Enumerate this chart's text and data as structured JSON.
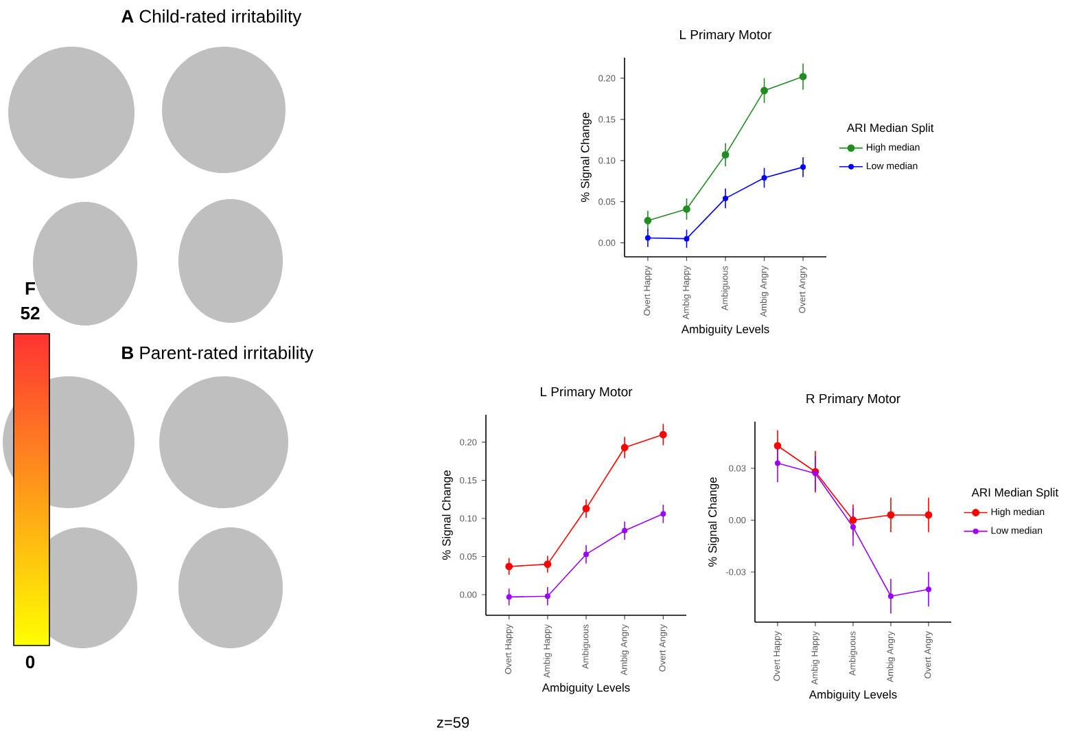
{
  "chart_data": [
    {
      "type": "line",
      "title": "L Primary Motor",
      "xlabel": "Ambiguity Levels",
      "ylabel": "% Signal Change",
      "legend_title": "ARI Median Split",
      "legend": "right",
      "marker": "circle",
      "categories": [
        "Overt Happy",
        "Ambig Happy",
        "Ambiguous",
        "Ambig Angry",
        "Overt Angry"
      ],
      "ylim": [
        -0.017,
        0.225
      ],
      "yticks": [
        {
          "value": 0,
          "label": "0.00"
        },
        {
          "value": 0.05,
          "label": "0.05"
        },
        {
          "value": 0.1,
          "label": "0.10"
        },
        {
          "value": 0.15,
          "label": "0.15"
        },
        {
          "value": 0.2,
          "label": "0.20"
        }
      ],
      "annotations": [
        "**A** Child-rated irritability"
      ],
      "series": [
        {
          "name": "High median",
          "color": "#228b22",
          "values": [
            0.027,
            0.041,
            0.107,
            0.185,
            0.202
          ],
          "errors": [
            0.012,
            0.013,
            0.014,
            0.015,
            0.016
          ]
        },
        {
          "name": "Low median",
          "color": "#0000ff",
          "values": [
            0.006,
            0.005,
            0.054,
            0.079,
            0.092
          ],
          "errors": [
            0.011,
            0.011,
            0.012,
            0.012,
            0.012
          ]
        }
      ]
    },
    {
      "type": "line",
      "title": "L Primary Motor",
      "xlabel": "Ambiguity Levels",
      "ylabel": "% Signal Change",
      "marker": "circle",
      "categories": [
        "Overt Happy",
        "Ambig Happy",
        "Ambiguous",
        "Ambig Angry",
        "Overt Angry"
      ],
      "ylim": [
        -0.027,
        0.236
      ],
      "yticks": [
        {
          "value": 0,
          "label": "0.00"
        },
        {
          "value": 0.05,
          "label": "0.05"
        },
        {
          "value": 0.1,
          "label": "0.10"
        },
        {
          "value": 0.15,
          "label": "0.15"
        },
        {
          "value": 0.2,
          "label": "0.20"
        }
      ],
      "annotations": [
        "**B** Parent-rated irritability",
        "F",
        "52",
        "0",
        "z=59"
      ],
      "series": [
        {
          "color": "#ff0000",
          "values": [
            0.037,
            0.04,
            0.113,
            0.193,
            0.21
          ],
          "errors": [
            0.011,
            0.011,
            0.012,
            0.014,
            0.014
          ]
        },
        {
          "color": "#9b00ff",
          "values": [
            -0.003,
            -0.002,
            0.053,
            0.084,
            0.106
          ],
          "errors": [
            0.011,
            0.012,
            0.012,
            0.012,
            0.012
          ]
        }
      ]
    },
    {
      "type": "line",
      "title": "R Primary Motor",
      "xlabel": "Ambiguity Levels",
      "ylabel": "% Signal Change",
      "legend_title": "ARI Median Split",
      "legend": "right",
      "marker": "circle",
      "categories": [
        "Overt Happy",
        "Ambig Happy",
        "Ambiguous",
        "Ambig Angry",
        "Overt Angry"
      ],
      "ylim": [
        -0.059,
        0.057
      ],
      "yticks": [
        {
          "value": -0.03,
          "label": "-0.03"
        },
        {
          "value": 0,
          "label": "0.00"
        },
        {
          "value": 0.03,
          "label": "0.03"
        }
      ],
      "series": [
        {
          "name": "High median",
          "color": "#ff0000",
          "values": [
            0.043,
            0.028,
            0.0,
            0.003,
            0.003
          ],
          "errors": [
            0.009,
            0.012,
            0.009,
            0.01,
            0.01
          ]
        },
        {
          "name": "Low median",
          "color": "#9b00ff",
          "values": [
            0.033,
            0.027,
            -0.004,
            -0.044,
            -0.04
          ],
          "errors": [
            0.011,
            0.01,
            0.011,
            0.01,
            0.01
          ]
        }
      ]
    }
  ]
}
